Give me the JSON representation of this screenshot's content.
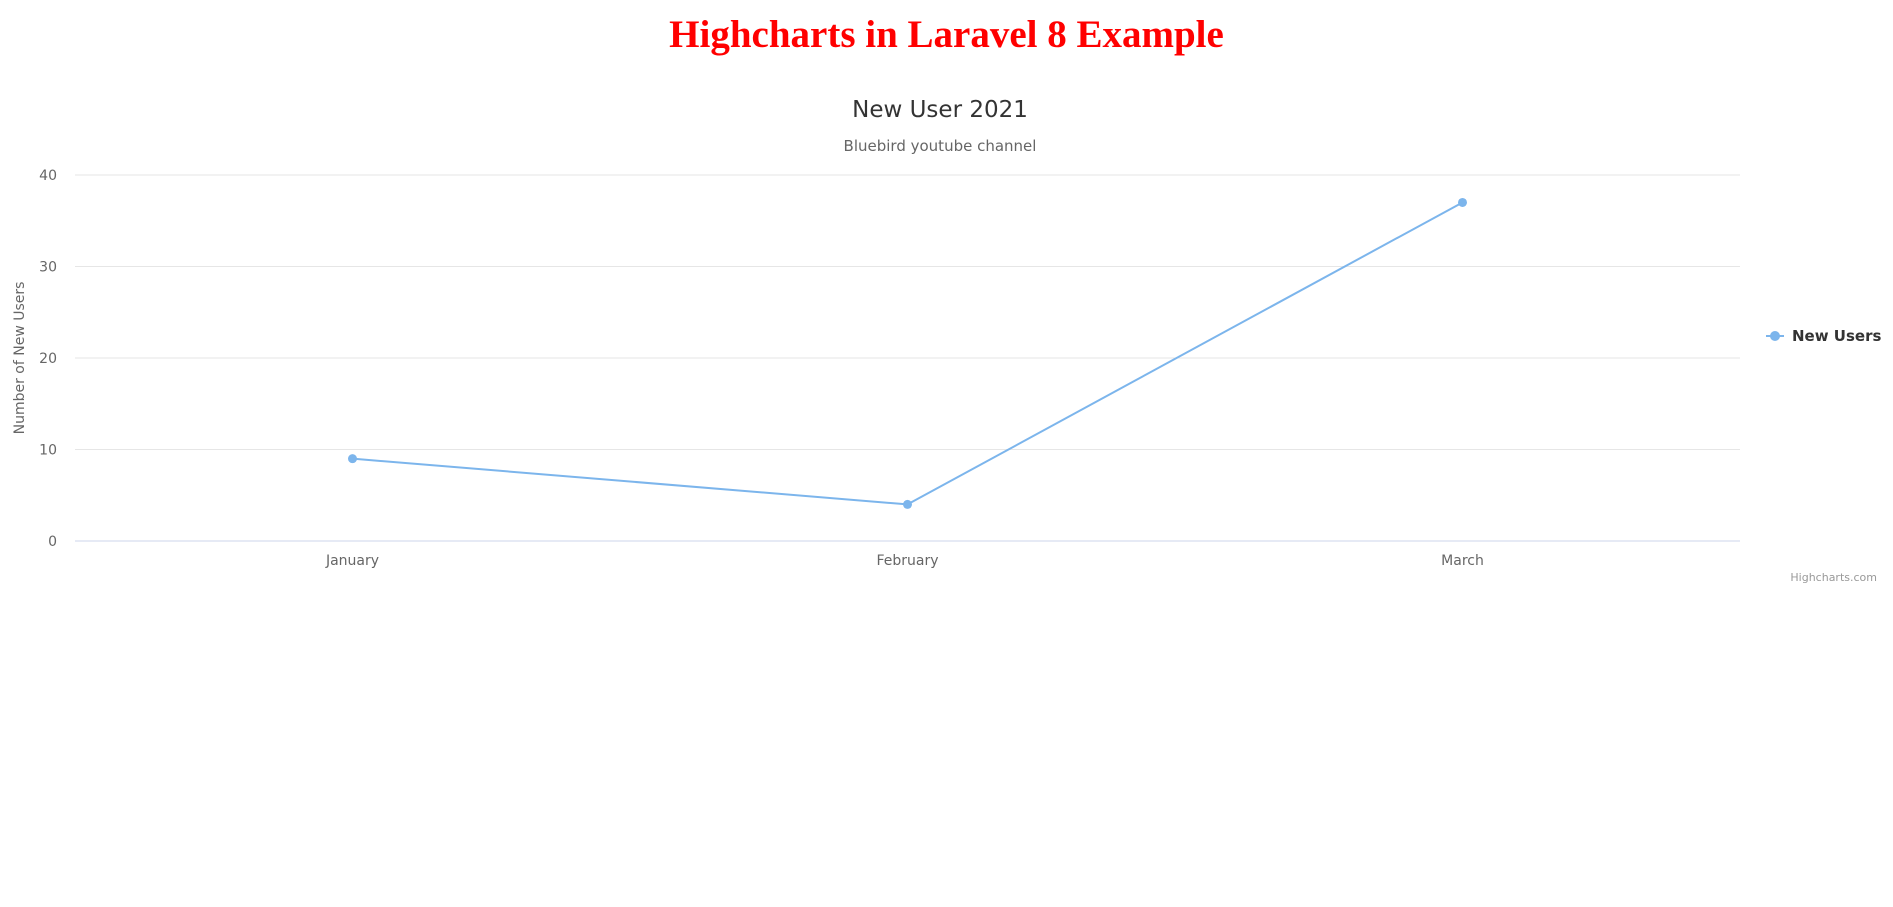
{
  "page": {
    "heading": "Highcharts in Laravel 8 Example",
    "heading_color": "#ff0000"
  },
  "chart_data": {
    "type": "line",
    "title": "New User 2021",
    "subtitle": "Bluebird youtube channel",
    "xlabel": "",
    "ylabel": "Number of New Users",
    "categories": [
      "January",
      "February",
      "March"
    ],
    "series": [
      {
        "name": "New Users",
        "values": [
          9,
          4,
          37
        ],
        "color": "#7cb5ec"
      }
    ],
    "ylim": [
      0,
      40
    ],
    "yticks": [
      0,
      10,
      20,
      30,
      40
    ],
    "grid": true,
    "legend_position": "right",
    "credits": "Highcharts.com"
  }
}
